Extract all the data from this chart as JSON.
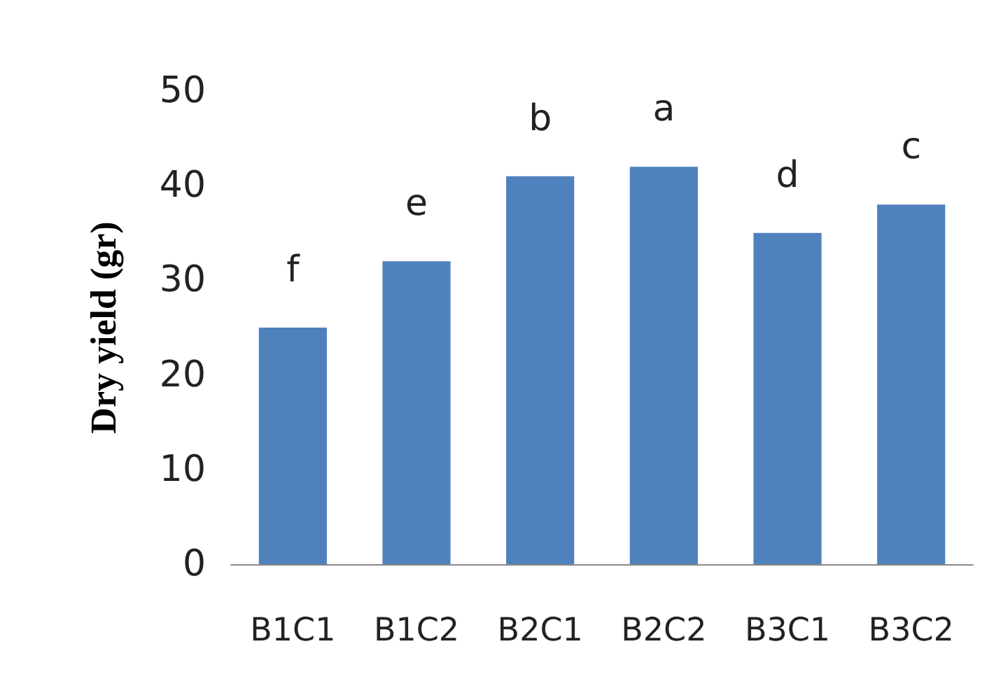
{
  "chart_data": {
    "type": "bar",
    "ylabel": "Dry yield (gr)",
    "categories": [
      "B1C1",
      "B1C2",
      "B2C1",
      "B2C2",
      "B3C1",
      "B3C2"
    ],
    "values": [
      25,
      32,
      41,
      42,
      35,
      38
    ],
    "value_labels": [
      "f",
      "e",
      "b",
      "a",
      "d",
      "c"
    ],
    "color": "#4f81bd",
    "ylim": [
      0,
      50
    ],
    "yticks": [
      0,
      10,
      20,
      30,
      40,
      50
    ],
    "grid": false
  }
}
